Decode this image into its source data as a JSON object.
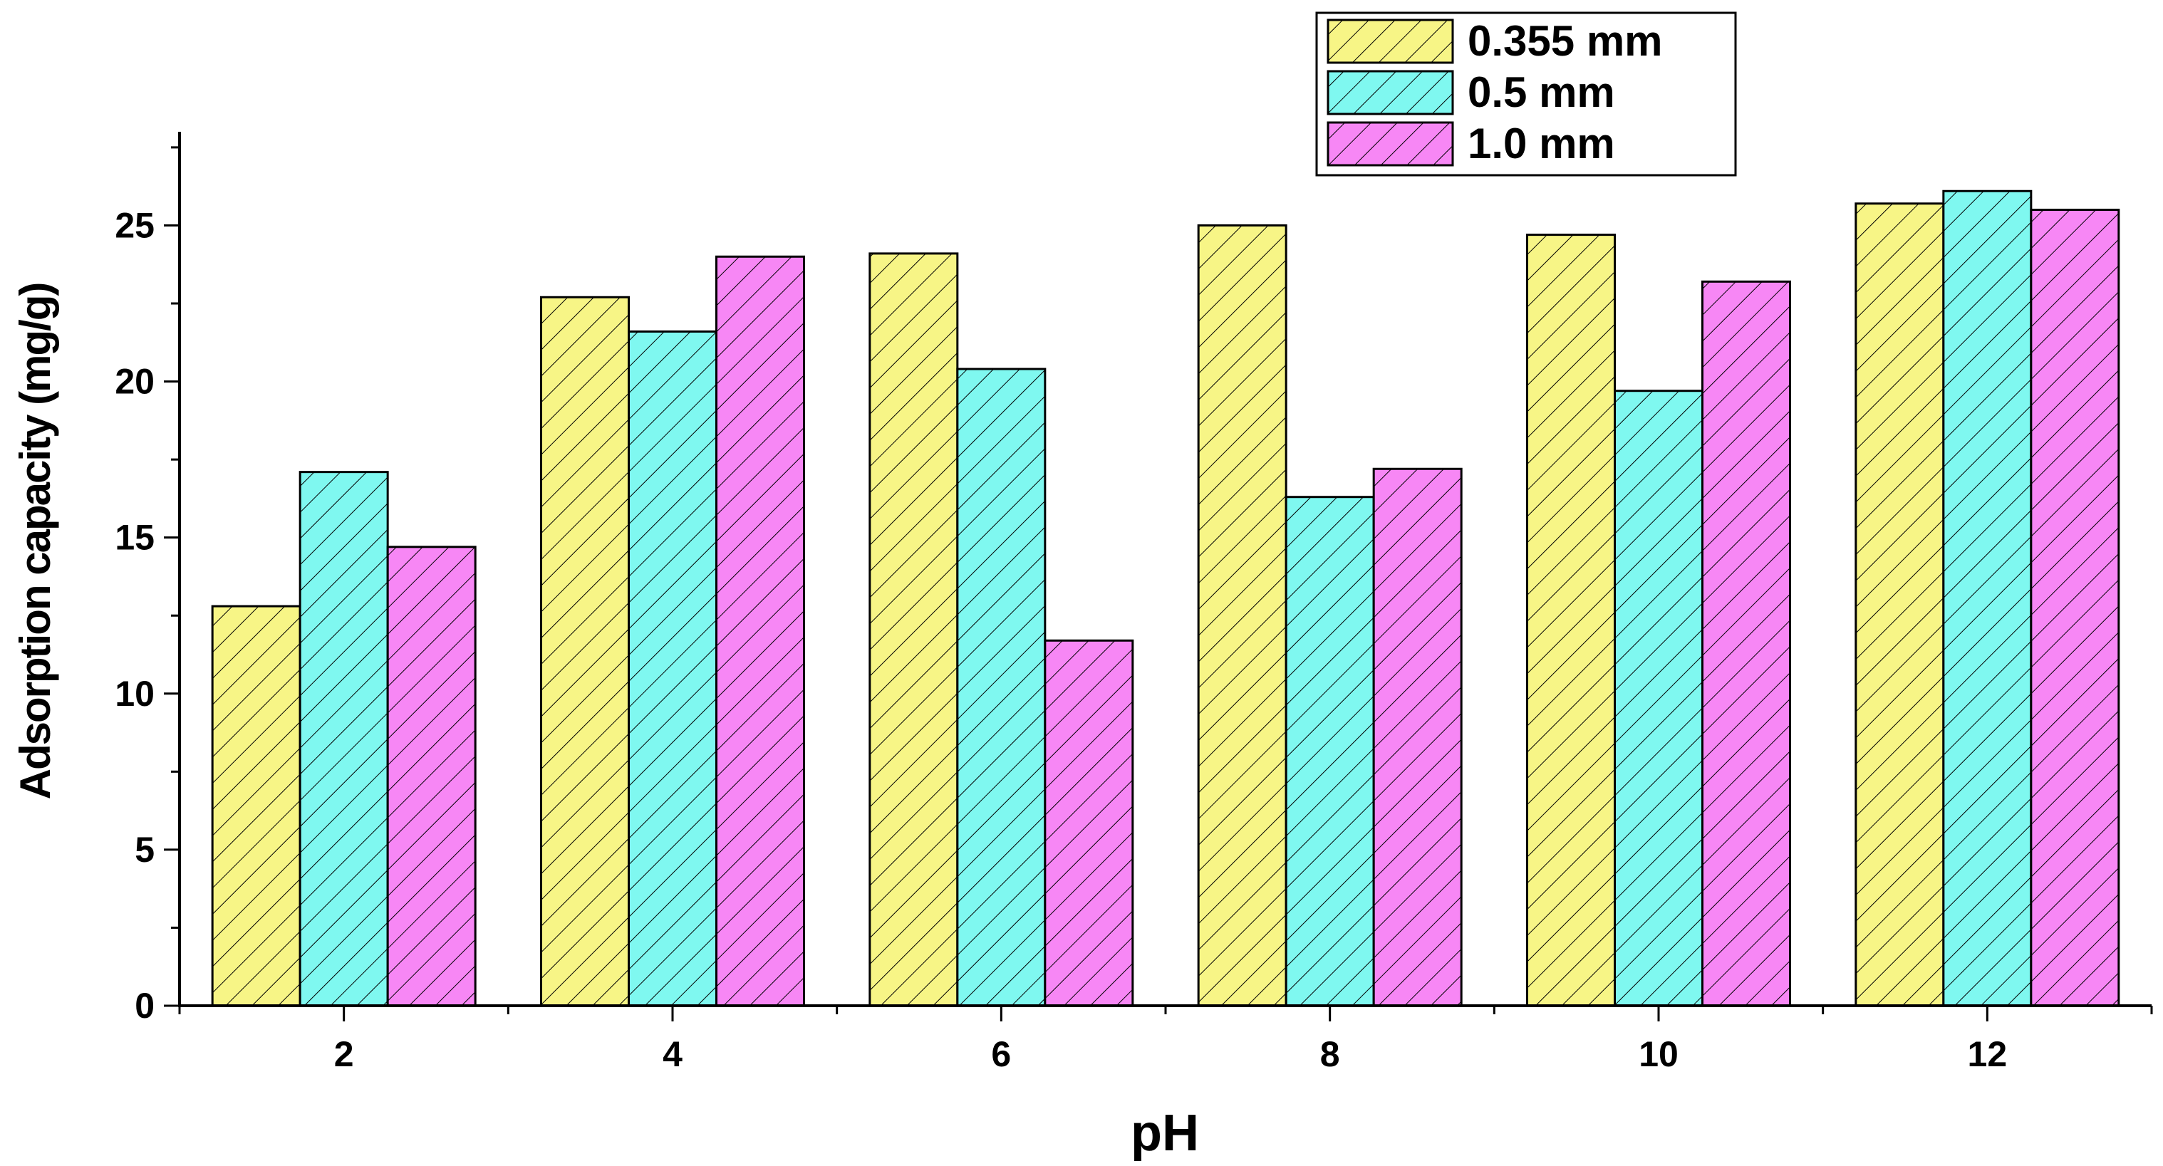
{
  "chart_data": {
    "type": "bar",
    "title": "",
    "xlabel": "pH",
    "ylabel": "Adsorption capacity (mg/g)",
    "categories": [
      "2",
      "4",
      "6",
      "8",
      "10",
      "12"
    ],
    "ylim": [
      0,
      28
    ],
    "y_ticks": [
      "0",
      "5",
      "10",
      "15",
      "20",
      "25"
    ],
    "grid": false,
    "legend_position": "top-right",
    "series": [
      {
        "name": "0.355 mm",
        "color": "#f7f586",
        "values": [
          12.8,
          22.7,
          24.1,
          25.0,
          24.7,
          25.7
        ]
      },
      {
        "name": "0.5 mm",
        "color": "#7ff8f0",
        "values": [
          17.1,
          21.6,
          20.4,
          16.3,
          19.7,
          26.1
        ]
      },
      {
        "name": "1.0 mm",
        "color": "#f787f5",
        "values": [
          14.7,
          24.0,
          11.7,
          17.2,
          23.2,
          25.5
        ]
      }
    ],
    "bar_pattern": "diagonal-hatch"
  }
}
